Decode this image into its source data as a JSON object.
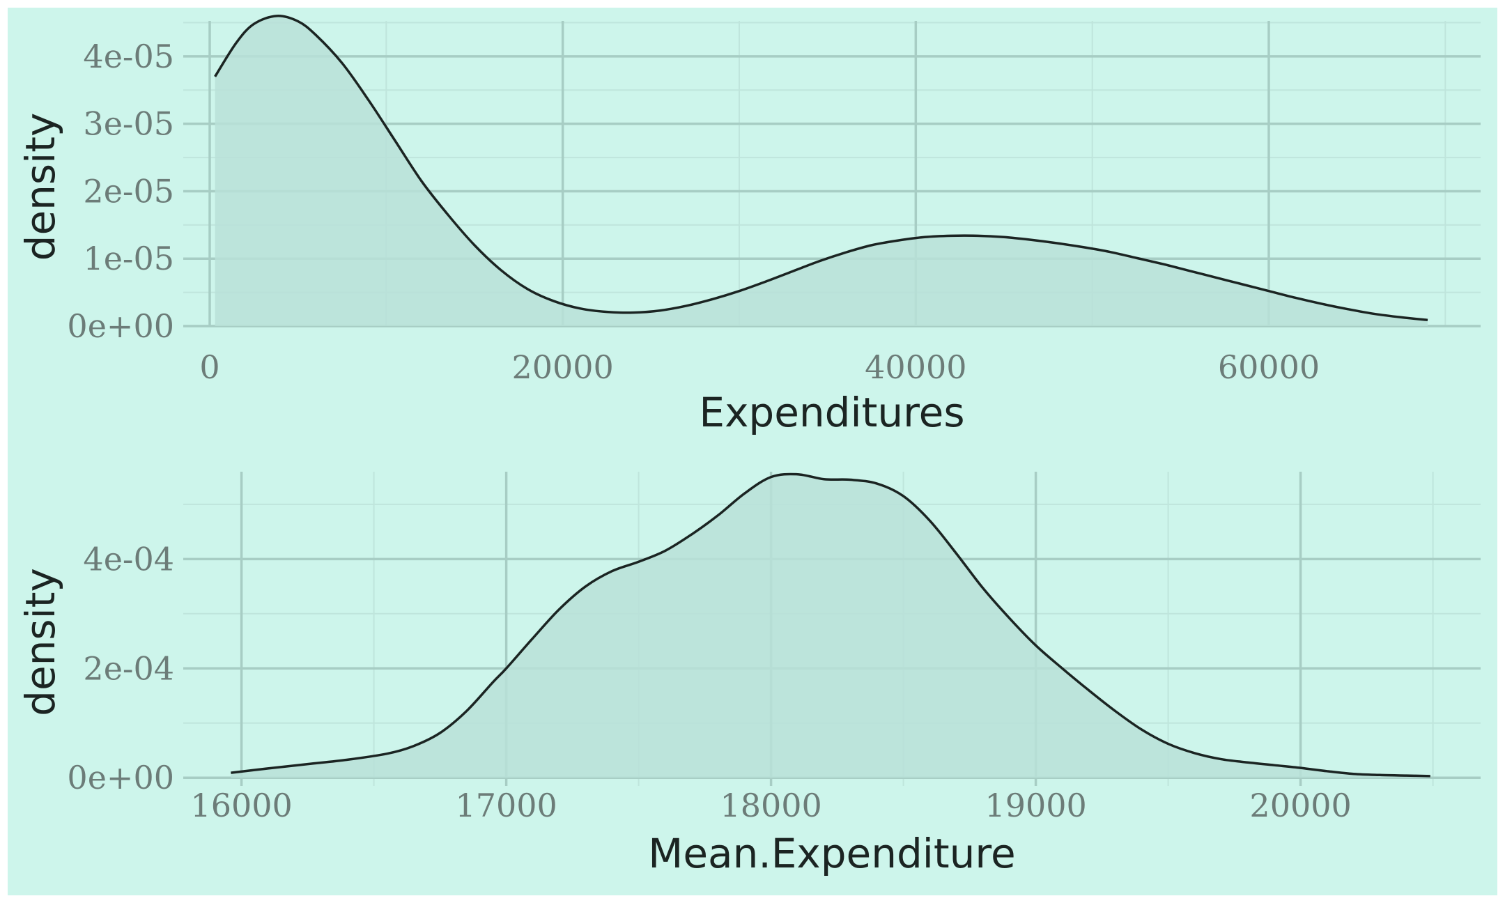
{
  "theme": {
    "panel_background": "#cdf5eb",
    "panel_border": "#ffffff",
    "grid_major": "#a7cdc4",
    "grid_minor": "#bfe5dc",
    "fill": "#b9e0d8",
    "line": "#1b2422",
    "tick_text": "#6c7c78",
    "axis_text": "#1b2422"
  },
  "chart_data": [
    {
      "type": "area",
      "xlabel": "Expenditures",
      "ylabel": "density",
      "xlim": [
        -1500,
        72000
      ],
      "ylim": [
        0,
        4.65e-05
      ],
      "x_major_ticks": [
        0,
        20000,
        40000,
        60000
      ],
      "x_minor_ticks": [
        10000,
        30000,
        50000,
        70000
      ],
      "y_major_ticks": [
        0,
        1e-05,
        2e-05,
        3e-05,
        4e-05
      ],
      "y_minor_ticks": [
        5e-06,
        1.5e-05,
        2.5e-05,
        3.5e-05,
        4.5e-05
      ],
      "x_tick_labels": [
        "0",
        "20000",
        "40000",
        "60000"
      ],
      "y_tick_labels": [
        "0e+00",
        "1e-05",
        "2e-05",
        "3e-05",
        "4e-05"
      ],
      "grid": true,
      "series": [
        {
          "points": [
            [
              300,
              3.7e-05
            ],
            [
              1500,
              4.2e-05
            ],
            [
              2500,
              4.48e-05
            ],
            [
              3800,
              4.6e-05
            ],
            [
              5000,
              4.52e-05
            ],
            [
              6000,
              4.32e-05
            ],
            [
              7500,
              3.9e-05
            ],
            [
              9000,
              3.35e-05
            ],
            [
              10500,
              2.75e-05
            ],
            [
              12000,
              2.15e-05
            ],
            [
              13500,
              1.65e-05
            ],
            [
              15000,
              1.2e-05
            ],
            [
              16500,
              8.3e-06
            ],
            [
              18000,
              5.5e-06
            ],
            [
              19500,
              3.7e-06
            ],
            [
              21000,
              2.6e-06
            ],
            [
              22500,
              2.1e-06
            ],
            [
              24000,
              2e-06
            ],
            [
              25500,
              2.3e-06
            ],
            [
              27000,
              3e-06
            ],
            [
              28500,
              4e-06
            ],
            [
              30000,
              5.2e-06
            ],
            [
              31500,
              6.6e-06
            ],
            [
              33000,
              8.1e-06
            ],
            [
              34500,
              9.6e-06
            ],
            [
              36000,
              1.09e-05
            ],
            [
              37500,
              1.2e-05
            ],
            [
              39000,
              1.27e-05
            ],
            [
              40500,
              1.32e-05
            ],
            [
              42000,
              1.34e-05
            ],
            [
              43500,
              1.34e-05
            ],
            [
              45000,
              1.32e-05
            ],
            [
              46500,
              1.28e-05
            ],
            [
              48000,
              1.23e-05
            ],
            [
              49500,
              1.17e-05
            ],
            [
              51000,
              1.1e-05
            ],
            [
              52500,
              1.01e-05
            ],
            [
              54000,
              9.2e-06
            ],
            [
              55500,
              8.2e-06
            ],
            [
              57000,
              7.2e-06
            ],
            [
              58500,
              6.2e-06
            ],
            [
              60000,
              5.2e-06
            ],
            [
              61500,
              4.2e-06
            ],
            [
              63000,
              3.3e-06
            ],
            [
              64500,
              2.5e-06
            ],
            [
              66000,
              1.8e-06
            ],
            [
              67500,
              1.3e-06
            ],
            [
              69000,
              9e-07
            ]
          ]
        }
      ]
    },
    {
      "type": "area",
      "xlabel": "Mean.Expenditure",
      "ylabel": "density",
      "xlim": [
        15780,
        20680
      ],
      "ylim": [
        -1.5e-05,
        0.000575
      ],
      "x_major_ticks": [
        16000,
        17000,
        18000,
        19000,
        20000
      ],
      "x_minor_ticks": [
        16500,
        17500,
        18500,
        19500,
        20500
      ],
      "y_major_ticks": [
        0,
        0.0002,
        0.0004
      ],
      "y_minor_ticks": [
        0.0001,
        0.0003,
        0.0005
      ],
      "x_tick_labels": [
        "16000",
        "17000",
        "18000",
        "19000",
        "20000"
      ],
      "y_tick_labels": [
        "0e+00",
        "2e-04",
        "4e-04"
      ],
      "grid": true,
      "series": [
        {
          "points": [
            [
              15960,
              9e-06
            ],
            [
              16100,
              1.7e-05
            ],
            [
              16250,
              2.5e-05
            ],
            [
              16400,
              3.3e-05
            ],
            [
              16550,
              4.4e-05
            ],
            [
              16650,
              5.8e-05
            ],
            [
              16750,
              8.2e-05
            ],
            [
              16850,
              0.000122
            ],
            [
              16950,
              0.000175
            ],
            [
              17000,
              0.0002
            ],
            [
              17100,
              0.000255
            ],
            [
              17200,
              0.000308
            ],
            [
              17300,
              0.00035
            ],
            [
              17400,
              0.000378
            ],
            [
              17500,
              0.000395
            ],
            [
              17600,
              0.000415
            ],
            [
              17700,
              0.000445
            ],
            [
              17800,
              0.00048
            ],
            [
              17900,
              0.00052
            ],
            [
              18000,
              0.00055
            ],
            [
              18100,
              0.000555
            ],
            [
              18200,
              0.000546
            ],
            [
              18300,
              0.000545
            ],
            [
              18400,
              0.000538
            ],
            [
              18500,
              0.000515
            ],
            [
              18600,
              0.00047
            ],
            [
              18700,
              0.00041
            ],
            [
              18800,
              0.000347
            ],
            [
              18900,
              0.000292
            ],
            [
              19000,
              0.000242
            ],
            [
              19100,
              0.0002
            ],
            [
              19200,
              0.00016
            ],
            [
              19300,
              0.000122
            ],
            [
              19400,
              8.8e-05
            ],
            [
              19500,
              6.2e-05
            ],
            [
              19600,
              4.5e-05
            ],
            [
              19700,
              3.4e-05
            ],
            [
              19800,
              2.8e-05
            ],
            [
              19900,
              2.3e-05
            ],
            [
              20000,
              1.8e-05
            ],
            [
              20100,
              1.2e-05
            ],
            [
              20200,
              7e-06
            ],
            [
              20300,
              5e-06
            ],
            [
              20400,
              4e-06
            ],
            [
              20490,
              3e-06
            ]
          ]
        }
      ]
    }
  ]
}
